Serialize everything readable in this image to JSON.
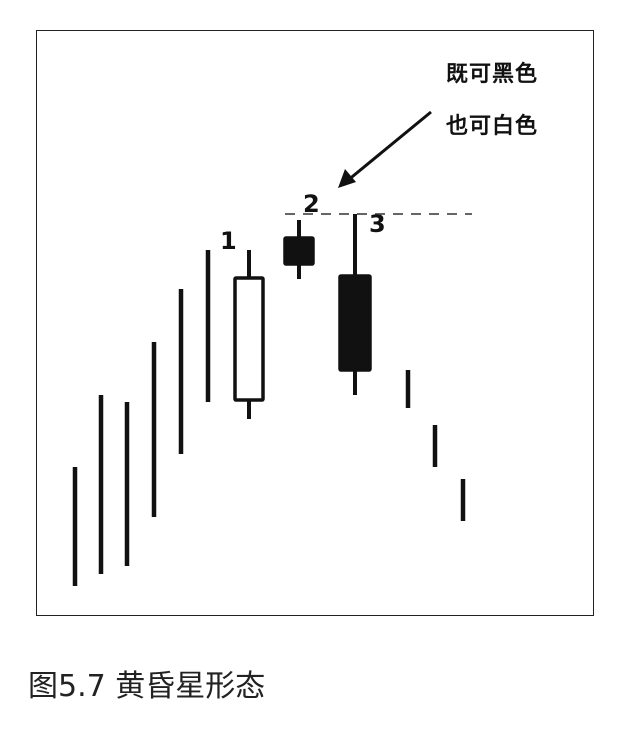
{
  "caption": "图5.7 黄昏星形态",
  "annotation": {
    "line1": "既可黑色",
    "line2": "也可白色"
  },
  "chart_data": {
    "type": "candlestick",
    "title": "",
    "xlabel": "",
    "ylabel": "",
    "grid": false,
    "colors": {
      "ink": "#111111",
      "body_white": "#ffffff",
      "dashed_line": "#666666"
    },
    "plain_bars": [
      {
        "high": 151,
        "low": 32
      },
      {
        "high": 223,
        "low": 44
      },
      {
        "high": 216,
        "low": 52
      },
      {
        "high": 276,
        "low": 101
      },
      {
        "high": 329,
        "low": 164
      },
      {
        "high": 368,
        "low": 216
      }
    ],
    "labeled_candles": [
      {
        "label": "1",
        "open": 218,
        "close": 340,
        "high": 368,
        "low": 199,
        "color": "white"
      },
      {
        "label": "2",
        "open": 380,
        "close": 354,
        "high": 398,
        "low": 339,
        "color": "black"
      },
      {
        "label": "3",
        "open": 342,
        "close": 248,
        "high": 404,
        "low": 223,
        "color": "black"
      }
    ],
    "after_bars": [
      {
        "high": 248,
        "low": 210
      },
      {
        "high": 193,
        "low": 151
      },
      {
        "high": 139,
        "low": 97
      }
    ],
    "reference_level": 404
  }
}
